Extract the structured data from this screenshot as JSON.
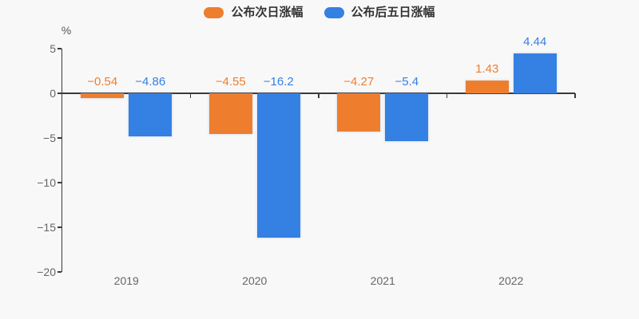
{
  "chart_data": {
    "type": "bar",
    "title": "",
    "unit_label": "%",
    "categories": [
      "2019",
      "2020",
      "2021",
      "2022"
    ],
    "series": [
      {
        "name": "公布次日涨幅",
        "color": "#ee7e2e",
        "values": [
          -0.54,
          -4.55,
          -4.27,
          1.43
        ],
        "labels": [
          "−0.54",
          "−4.55",
          "−4.27",
          "1.43"
        ]
      },
      {
        "name": "公布后五日涨幅",
        "color": "#3580e3",
        "values": [
          -4.86,
          -16.2,
          -5.4,
          4.44
        ],
        "labels": [
          "−4.86",
          "−16.2",
          "−5.4",
          "4.44"
        ]
      }
    ],
    "ylim": [
      -20,
      5
    ],
    "y_ticks": [
      5,
      0,
      -5,
      -10,
      -15,
      -20
    ],
    "grid": false,
    "legend_position": "top-center",
    "background_color": "#f8f8f8",
    "axis_color": "#3a3a3a",
    "tick_label_color": "#666666",
    "legend_text_color": "#333333"
  }
}
